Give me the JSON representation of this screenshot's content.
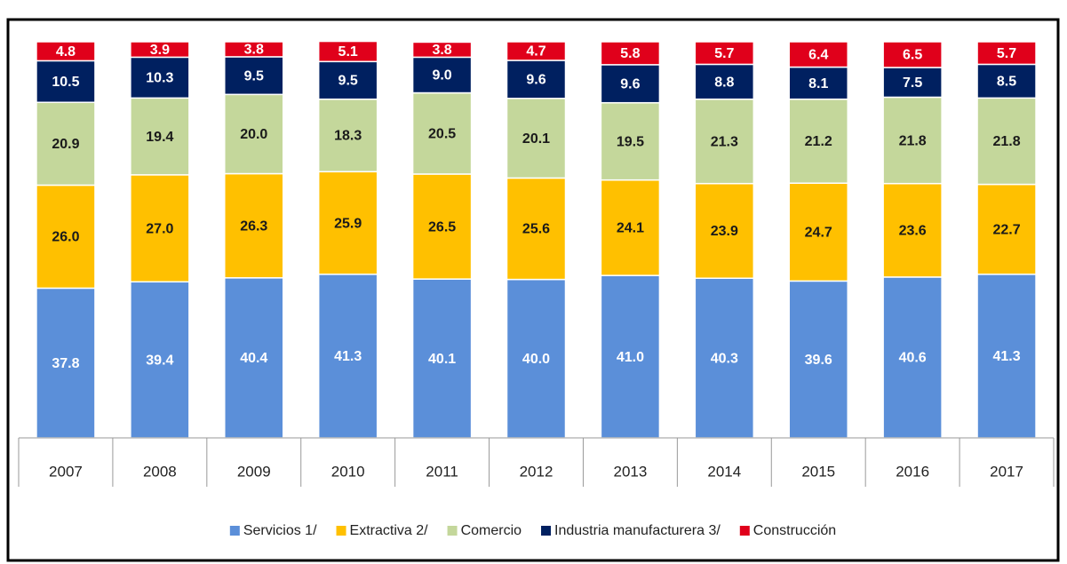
{
  "chart_data": {
    "type": "stacked_bar",
    "categories": [
      "2007",
      "2008",
      "2009",
      "2010",
      "2011",
      "2012",
      "2013",
      "2014",
      "2015",
      "2016",
      "2017"
    ],
    "ylim": [
      0,
      100
    ],
    "series": [
      {
        "name": "Servicios 1/",
        "color": "#5b8fd9",
        "values": [
          37.8,
          39.4,
          40.4,
          41.3,
          40.1,
          40.0,
          41.0,
          40.3,
          39.6,
          40.6,
          41.3
        ],
        "value_labels": [
          "37.8",
          "39.4",
          "40.4",
          "41.3",
          "40.1",
          "40.0",
          "41.0",
          "40.3",
          "39.6",
          "40.6",
          "41.3"
        ]
      },
      {
        "name": "Extractiva 2/",
        "color": "#ffc000",
        "values": [
          26.0,
          27.0,
          26.3,
          25.9,
          26.5,
          25.6,
          24.1,
          23.9,
          24.7,
          23.6,
          22.7
        ],
        "value_labels": [
          "26.0",
          "27.0",
          "26.3",
          "25.9",
          "26.5",
          "25.6",
          "24.1",
          "23.9",
          "24.7",
          "23.6",
          "22.7"
        ]
      },
      {
        "name": "Comercio",
        "color": "#c4d79b",
        "values": [
          20.9,
          19.4,
          20.0,
          18.3,
          20.5,
          20.1,
          19.5,
          21.3,
          21.2,
          21.8,
          21.8
        ],
        "value_labels": [
          "20.9",
          "19.4",
          "20.0",
          "18.3",
          "20.5",
          "20.1",
          "19.5",
          "21.3",
          "21.2",
          "21.8",
          "21.8"
        ]
      },
      {
        "name": "Industria manufacturera 3/",
        "color": "#002060",
        "values": [
          10.5,
          10.3,
          9.5,
          9.5,
          9.0,
          9.6,
          9.6,
          8.8,
          8.1,
          7.5,
          8.5
        ],
        "value_labels": [
          "10.5",
          "10.3",
          "9.5",
          "9.5",
          "9.0",
          "9.6",
          "9.6",
          "8.8",
          "8.1",
          "7.5",
          "8.5"
        ]
      },
      {
        "name": "Construcción",
        "color": "#e0001b",
        "values": [
          4.8,
          3.9,
          3.8,
          5.1,
          3.8,
          4.7,
          5.8,
          5.7,
          6.4,
          6.5,
          5.7
        ],
        "value_labels": [
          "4.8",
          "3.9",
          "3.8",
          "5.1",
          "3.8",
          "4.7",
          "5.8",
          "5.7",
          "6.4",
          "6.5",
          "5.7"
        ]
      }
    ]
  }
}
